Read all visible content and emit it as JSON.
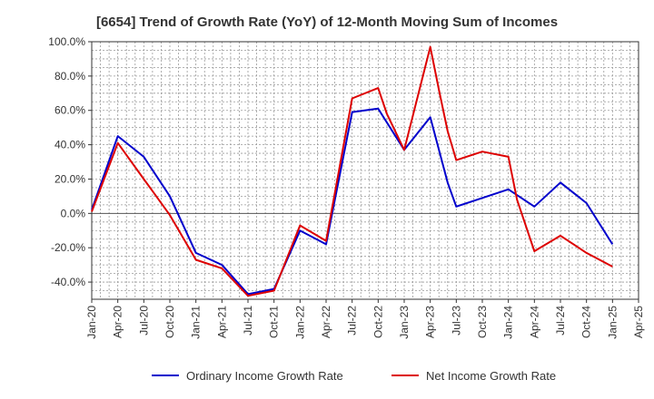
{
  "chart_data": {
    "type": "line",
    "title": "[6654]  Trend of Growth Rate (YoY) of 12-Month Moving Sum of Incomes",
    "xlabel": "",
    "ylabel": "",
    "ylim": [
      -50,
      100
    ],
    "y_ticks": [
      "100.0%",
      "80.0%",
      "60.0%",
      "40.0%",
      "20.0%",
      "0.0%",
      "-20.0%",
      "-40.0%"
    ],
    "y_tick_values": [
      100,
      80,
      60,
      40,
      20,
      0,
      -20,
      -40
    ],
    "x_ticks": [
      "Jan-20",
      "Apr-20",
      "Jul-20",
      "Oct-20",
      "Jan-21",
      "Apr-21",
      "Jul-21",
      "Oct-21",
      "Jan-22",
      "Apr-22",
      "Jul-22",
      "Oct-22",
      "Jan-23",
      "Apr-23",
      "Jul-23",
      "Oct-23",
      "Jan-24",
      "Apr-24",
      "Jul-24",
      "Oct-24",
      "Jan-25",
      "Apr-25"
    ],
    "grid": true,
    "legend_position": "bottom",
    "series": [
      {
        "name": "Ordinary Income Growth Rate",
        "color": "#0000cc",
        "points": [
          [
            "2020-01",
            2
          ],
          [
            "2020-04",
            45
          ],
          [
            "2020-07",
            33
          ],
          [
            "2020-10",
            10
          ],
          [
            "2021-01",
            -23
          ],
          [
            "2021-04",
            -30
          ],
          [
            "2021-07",
            -47
          ],
          [
            "2021-10",
            -44
          ],
          [
            "2022-01",
            -10
          ],
          [
            "2022-04",
            -18
          ],
          [
            "2022-07",
            59
          ],
          [
            "2022-10",
            61
          ],
          [
            "2023-01",
            37
          ],
          [
            "2023-04",
            56
          ],
          [
            "2023-06",
            18
          ],
          [
            "2023-07",
            4
          ],
          [
            "2023-10",
            9
          ],
          [
            "2024-01",
            14
          ],
          [
            "2024-04",
            4
          ],
          [
            "2024-07",
            18
          ],
          [
            "2024-10",
            6
          ],
          [
            "2025-01",
            -18
          ]
        ]
      },
      {
        "name": "Net Income Growth Rate",
        "color": "#dd0000",
        "points": [
          [
            "2020-01",
            1
          ],
          [
            "2020-04",
            41
          ],
          [
            "2020-07",
            20
          ],
          [
            "2020-08",
            13
          ],
          [
            "2020-10",
            -1
          ],
          [
            "2021-01",
            -27
          ],
          [
            "2021-04",
            -32
          ],
          [
            "2021-07",
            -48
          ],
          [
            "2021-10",
            -45
          ],
          [
            "2022-01",
            -7
          ],
          [
            "2022-04",
            -16
          ],
          [
            "2022-07",
            67
          ],
          [
            "2022-10",
            73
          ],
          [
            "2022-11",
            58
          ],
          [
            "2023-01",
            37
          ],
          [
            "2023-04",
            97
          ],
          [
            "2023-05",
            72
          ],
          [
            "2023-06",
            48
          ],
          [
            "2023-07",
            31
          ],
          [
            "2023-10",
            36
          ],
          [
            "2024-01",
            33
          ],
          [
            "2024-02",
            8
          ],
          [
            "2024-04",
            -22
          ],
          [
            "2024-07",
            -13
          ],
          [
            "2024-10",
            -23
          ],
          [
            "2025-01",
            -31
          ]
        ]
      }
    ]
  }
}
